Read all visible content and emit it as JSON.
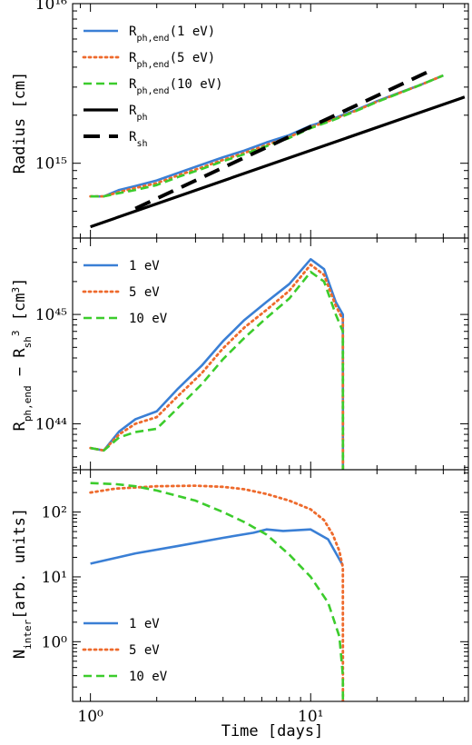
{
  "colors": {
    "blue": "#3a7fd5",
    "orange": "#ee6a2c",
    "green": "#3ccc2c",
    "black": "#000000"
  },
  "xlabel": "Time [days]",
  "chart_data": [
    {
      "type": "line",
      "ylabel": "Radius [cm]",
      "xscale": "log",
      "yscale": "log",
      "xlim": [
        0.83,
        52
      ],
      "ylim": [
        340000000000000.0,
        1e+16
      ],
      "x_major_ticks": [
        {
          "value": 1,
          "label": "10⁰"
        },
        {
          "value": 10,
          "label": "10¹"
        }
      ],
      "y_major_ticks": [
        {
          "value": 1000000000000000.0,
          "label": "10¹⁵"
        },
        {
          "value": 1e+16,
          "label": "10¹⁶"
        }
      ],
      "legend_position": "upper-left",
      "series": [
        {
          "name": "R_ph,end(1 eV)",
          "label_main": "R",
          "label_sub": "ph,end",
          "label_suffix": "(1 eV)",
          "color": "blue",
          "style": "solid",
          "x": [
            1,
            1.15,
            1.35,
            1.6,
            2,
            2.5,
            3.2,
            4,
            5,
            6.3,
            8,
            10,
            12.6,
            16,
            20,
            25,
            31.6,
            40
          ],
          "y": [
            620000000000000.0,
            620000000000000.0,
            680000000000000.0,
            720000000000000.0,
            780000000000000.0,
            870000000000000.0,
            980000000000000.0,
            1090000000000000.0,
            1200000000000000.0,
            1350000000000000.0,
            1500000000000000.0,
            1720000000000000.0,
            1900000000000000.0,
            2150000000000000.0,
            2450000000000000.0,
            2750000000000000.0,
            3100000000000000.0,
            3550000000000000.0
          ]
        },
        {
          "name": "R_ph,end(5 eV)",
          "label_main": "R",
          "label_sub": "ph,end",
          "label_suffix": "(5 eV)",
          "color": "orange",
          "style": "dotted",
          "x": [
            1,
            1.15,
            1.35,
            1.6,
            2,
            2.5,
            3.2,
            4,
            5,
            6.3,
            8,
            10,
            12.6,
            16,
            20,
            25,
            31.6,
            40
          ],
          "y": [
            620000000000000.0,
            620000000000000.0,
            660000000000000.0,
            700000000000000.0,
            750000000000000.0,
            840000000000000.0,
            940000000000000.0,
            1050000000000000.0,
            1160000000000000.0,
            1300000000000000.0,
            1460000000000000.0,
            1680000000000000.0,
            1880000000000000.0,
            2130000000000000.0,
            2430000000000000.0,
            2740000000000000.0,
            3100000000000000.0,
            3550000000000000.0
          ]
        },
        {
          "name": "R_ph,end(10 eV)",
          "label_main": "R",
          "label_sub": "ph,end",
          "label_suffix": "(10 eV)",
          "color": "green",
          "style": "dashed",
          "x": [
            1,
            1.15,
            1.35,
            1.6,
            2,
            2.5,
            3.2,
            4,
            5,
            6.3,
            8,
            10,
            12.6,
            16,
            20,
            25,
            31.6,
            40
          ],
          "y": [
            620000000000000.0,
            620000000000000.0,
            650000000000000.0,
            680000000000000.0,
            730000000000000.0,
            820000000000000.0,
            920000000000000.0,
            1030000000000000.0,
            1140000000000000.0,
            1280000000000000.0,
            1440000000000000.0,
            1660000000000000.0,
            1860000000000000.0,
            2120000000000000.0,
            2420000000000000.0,
            2730000000000000.0,
            3100000000000000.0,
            3550000000000000.0
          ]
        },
        {
          "name": "R_ph",
          "label_main": "R",
          "label_sub": "ph",
          "label_suffix": "",
          "color": "black",
          "style": "solid-thick",
          "x": [
            1,
            50
          ],
          "y": [
            400000000000000.0,
            2600000000000000.0
          ]
        },
        {
          "name": "R_sh",
          "label_main": "R",
          "label_sub": "sh",
          "label_suffix": "",
          "color": "black",
          "style": "longdash",
          "x": [
            1.6,
            35
          ],
          "y": [
            520000000000000.0,
            3800000000000000.0
          ]
        }
      ]
    },
    {
      "type": "line",
      "ylabel_main": "R",
      "ylabel_sub1": "ph,end",
      "ylabel_mid": " − R",
      "ylabel_sub2": "sh",
      "ylabel_sup": "3",
      "ylabel_unit": " [cm",
      "ylabel_unit_sup": "3",
      "ylabel_close": "]",
      "xscale": "log",
      "yscale": "log",
      "xlim": [
        0.83,
        52
      ],
      "ylim": [
        3.8e+43,
        5e+45
      ],
      "y_major_ticks": [
        {
          "value": 1e+44,
          "label": "10⁴⁴"
        },
        {
          "value": 1e+45,
          "label": "10⁴⁵"
        }
      ],
      "legend_position": "upper-left",
      "series": [
        {
          "name": "1 eV",
          "color": "blue",
          "style": "solid",
          "x": [
            1,
            1.15,
            1.35,
            1.6,
            2,
            2.5,
            3.2,
            4,
            5,
            6.3,
            8,
            10,
            11.5,
            13,
            14,
            14.01
          ],
          "y": [
            6e+43,
            5.7e+43,
            8.5e+43,
            1.1e+44,
            1.3e+44,
            2.1e+44,
            3.4e+44,
            5.7e+44,
            8.9e+44,
            1.3e+45,
            1.9e+45,
            3.2e+45,
            2.6e+45,
            1.3e+45,
            1e+45,
            3e+43
          ]
        },
        {
          "name": "5 eV",
          "color": "orange",
          "style": "dotted",
          "x": [
            1,
            1.15,
            1.35,
            1.6,
            2,
            2.5,
            3.2,
            4,
            5,
            6.3,
            8,
            10,
            11.5,
            13,
            14,
            14.01
          ],
          "y": [
            6e+43,
            5.7e+43,
            8e+43,
            1e+44,
            1.15e+44,
            1.8e+44,
            2.9e+44,
            4.9e+44,
            7.6e+44,
            1.1e+45,
            1.65e+45,
            2.85e+45,
            2.3e+45,
            1.2e+45,
            9e+44,
            3e+43
          ]
        },
        {
          "name": "10 eV",
          "color": "green",
          "style": "dashed",
          "x": [
            1,
            1.15,
            1.35,
            1.6,
            2,
            2.5,
            3.2,
            4,
            5,
            6.3,
            8,
            10,
            11.5,
            13,
            14,
            14.01
          ],
          "y": [
            6e+43,
            5.7e+43,
            7.5e+43,
            8.4e+43,
            9e+43,
            1.4e+44,
            2.3e+44,
            3.9e+44,
            6.1e+44,
            9.3e+44,
            1.4e+45,
            2.45e+45,
            2e+45,
            1e+45,
            7e+44,
            3e+43
          ]
        }
      ]
    },
    {
      "type": "line",
      "ylabel_main": "N",
      "ylabel_sub": "inter",
      "ylabel_rest": "[arb. units]",
      "xscale": "log",
      "yscale": "log",
      "xlim": [
        0.83,
        52
      ],
      "ylim": [
        0.12,
        450
      ],
      "y_major_ticks": [
        {
          "value": 1,
          "label": "10⁰"
        },
        {
          "value": 10,
          "label": "10¹"
        },
        {
          "value": 100,
          "label": "10²"
        }
      ],
      "legend_position": "lower-left",
      "series": [
        {
          "name": "1 eV",
          "color": "blue",
          "style": "solid",
          "x": [
            1,
            1.6,
            2.5,
            4,
            5.5,
            6.3,
            7.5,
            10,
            12,
            14
          ],
          "y": [
            16,
            23,
            30,
            40,
            48,
            54,
            51,
            54,
            38,
            15
          ]
        },
        {
          "name": "5 eV",
          "color": "orange",
          "style": "dotted",
          "x": [
            1,
            1.3,
            2,
            3,
            4,
            5,
            6.3,
            8,
            10,
            11.5,
            12.6,
            13.5,
            14,
            14.01
          ],
          "y": [
            200,
            230,
            250,
            255,
            245,
            225,
            190,
            150,
            110,
            75,
            45,
            25,
            14,
            0.12
          ]
        },
        {
          "name": "10 eV",
          "color": "green",
          "style": "dashed",
          "x": [
            1,
            1.3,
            1.6,
            2,
            3,
            4,
            5,
            6.3,
            8,
            10,
            12,
            13.5,
            14,
            14.01
          ],
          "y": [
            280,
            270,
            250,
            215,
            150,
            100,
            70,
            45,
            22,
            10,
            4,
            1.2,
            0.3,
            0.12
          ]
        }
      ]
    }
  ]
}
